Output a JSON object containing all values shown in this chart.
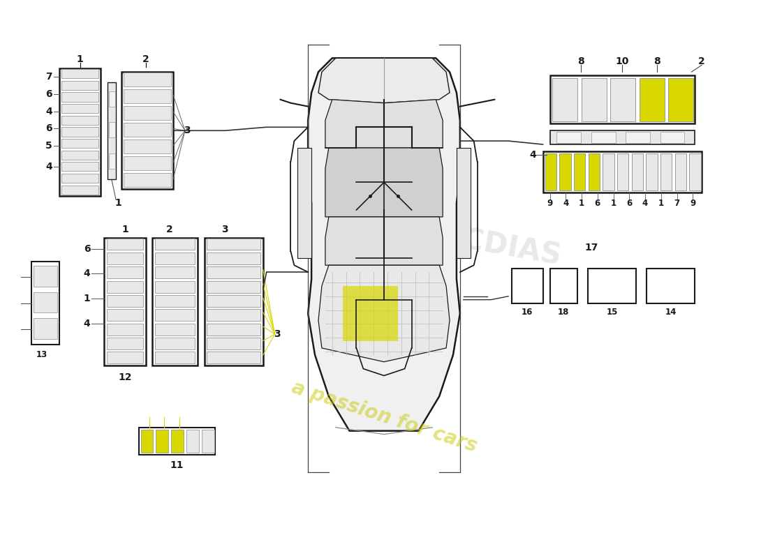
{
  "bg_color": "#ffffff",
  "watermark_text": "a passion for cars",
  "watermark_color": "#c8c800",
  "watermark_alpha": 0.5,
  "line_color": "#1a1a1a",
  "gray_fill": "#e8e8e8",
  "light_fill": "#f2f2f2",
  "mid_fill": "#d8d8d8",
  "yellow": "#d8d800",
  "yellow_light": "#e8e840",
  "connector_gray": "#cccccc",
  "label_fs": 9,
  "bold_fs": 10,
  "small_fs": 8
}
